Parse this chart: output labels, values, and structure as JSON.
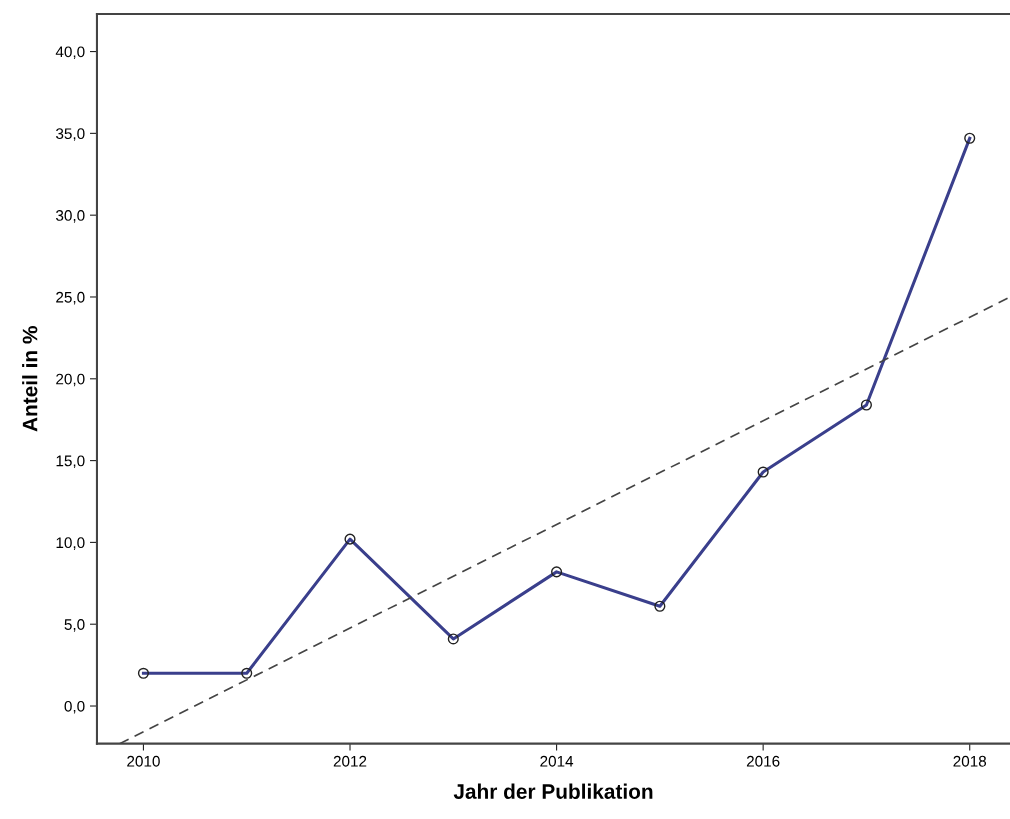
{
  "chart_data": {
    "type": "line",
    "xlabel": "Jahr der Publikation",
    "ylabel": "Anteil in %",
    "x": [
      2010,
      2011,
      2012,
      2013,
      2014,
      2015,
      2016,
      2017,
      2018
    ],
    "series": [
      {
        "color": "#3a3f8c",
        "values": [
          2.0,
          2.0,
          10.2,
          4.1,
          8.2,
          6.1,
          14.3,
          18.4,
          34.7
        ],
        "marker": "circle",
        "line_style": "solid"
      },
      {
        "type": "line",
        "color": "#444444",
        "x": [
          2009.77,
          2018.39
        ],
        "values": [
          -2.3,
          25.0
        ],
        "marker": "none",
        "line_style": "dashed"
      }
    ],
    "xlim": [
      2009.55,
      2018.39
    ],
    "ylim": [
      -2.3,
      42.3
    ],
    "xticks": [
      2010,
      2012,
      2014,
      2016,
      2018
    ],
    "yticks": [
      {
        "value": 0,
        "label": "0,0"
      },
      {
        "value": 5,
        "label": "5,0"
      },
      {
        "value": 10,
        "label": "10,0"
      },
      {
        "value": 15,
        "label": "15,0"
      },
      {
        "value": 20,
        "label": "20,0"
      },
      {
        "value": 25,
        "label": "25,0"
      },
      {
        "value": 30,
        "label": "30,0"
      },
      {
        "value": 35,
        "label": "35,0"
      },
      {
        "value": 40,
        "label": "40,0"
      }
    ],
    "grid": false,
    "legend": false
  }
}
